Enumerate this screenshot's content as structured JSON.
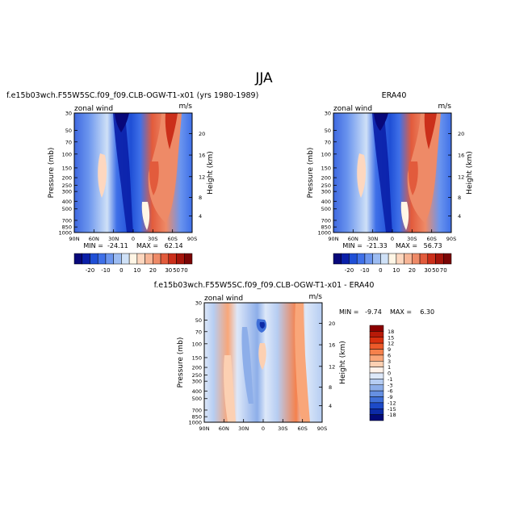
{
  "page_title": "JJA",
  "chart_data": [
    {
      "type": "heatmap",
      "title": "f.e15b03wch.F55W5SC.f09_f09.CLB-OGW-T1-x01 (yrs 1980-1989)",
      "variable_label": "zonal wind",
      "units_label": "m/s",
      "ylabel": "Pressure (mb)",
      "ylabel_right": "Height (km)",
      "x_ticks": [
        "90N",
        "60N",
        "30N",
        "0",
        "30S",
        "60S",
        "90S"
      ],
      "y_ticks": [
        "30",
        "50",
        "70",
        "100",
        "150",
        "200",
        "250",
        "300",
        "400",
        "500",
        "700",
        "850",
        "1000"
      ],
      "height_ticks": [
        "4",
        "8",
        "12",
        "16",
        "20"
      ],
      "stats": "MIN =  -24.11    MAX =   62.14",
      "colorbar_labels": [
        "-20",
        "-10",
        "0",
        "10",
        "20",
        "30",
        "50",
        "70"
      ],
      "colorbar_colors": [
        "#08087a",
        "#0a1fa8",
        "#1f4fd6",
        "#3f70e8",
        "#6b95ee",
        "#9cbcf2",
        "#cfe1f7",
        "#fff6e6",
        "#fdd7bf",
        "#f7b596",
        "#ee8a67",
        "#e25b3c",
        "#cb2f1a",
        "#a5150b",
        "#7a0505"
      ],
      "ylim": [
        1000,
        30
      ]
    },
    {
      "type": "heatmap",
      "title": "ERA40",
      "variable_label": "zonal wind",
      "units_label": "m/s",
      "ylabel": "Pressure (mb)",
      "ylabel_right": "Height (km)",
      "x_ticks": [
        "90N",
        "60N",
        "30N",
        "0",
        "30S",
        "60S",
        "90S"
      ],
      "y_ticks": [
        "30",
        "50",
        "70",
        "100",
        "150",
        "200",
        "250",
        "300",
        "400",
        "500",
        "700",
        "850",
        "1000"
      ],
      "height_ticks": [
        "4",
        "8",
        "12",
        "16",
        "20"
      ],
      "stats": "MIN =  -21.33    MAX =   56.73",
      "colorbar_labels": [
        "-20",
        "-10",
        "0",
        "10",
        "20",
        "30",
        "50",
        "70"
      ],
      "colorbar_colors": [
        "#08087a",
        "#0a1fa8",
        "#1f4fd6",
        "#3f70e8",
        "#6b95ee",
        "#9cbcf2",
        "#cfe1f7",
        "#fff6e6",
        "#fdd7bf",
        "#f7b596",
        "#ee8a67",
        "#e25b3c",
        "#cb2f1a",
        "#a5150b",
        "#7a0505"
      ],
      "ylim": [
        1000,
        30
      ]
    },
    {
      "type": "heatmap",
      "title": "f.e15b03wch.F55W5SC.f09_f09.CLB-OGW-T1-x01 - ERA40",
      "variable_label": "zonal wind",
      "units_label": "m/s",
      "ylabel": "Pressure (mb)",
      "ylabel_right": "Height (km)",
      "x_ticks": [
        "90N",
        "60N",
        "30N",
        "0",
        "30S",
        "60S",
        "90S"
      ],
      "y_ticks": [
        "30",
        "50",
        "70",
        "100",
        "150",
        "200",
        "250",
        "300",
        "400",
        "500",
        "700",
        "850",
        "1000"
      ],
      "height_ticks": [
        "4",
        "8",
        "12",
        "16",
        "20"
      ],
      "stats": "MIN =   -9.74    MAX =    6.30",
      "colorbar_labels": [
        "18",
        "15",
        "12",
        "9",
        "6",
        "3",
        "1",
        "0",
        "-1",
        "-3",
        "-6",
        "-9",
        "-12",
        "-15",
        "-18"
      ],
      "colorbar_colors": [
        "#8b0000",
        "#b81a08",
        "#d8300f",
        "#ec5a2a",
        "#f5814c",
        "#f9a679",
        "#fcd0b2",
        "#fff2ea",
        "#dde8f9",
        "#b6cdf2",
        "#8daee9",
        "#6690e2",
        "#3f6fd8",
        "#1d4ac8",
        "#0c2aa6",
        "#020a78"
      ],
      "ylim": [
        1000,
        30
      ]
    }
  ]
}
